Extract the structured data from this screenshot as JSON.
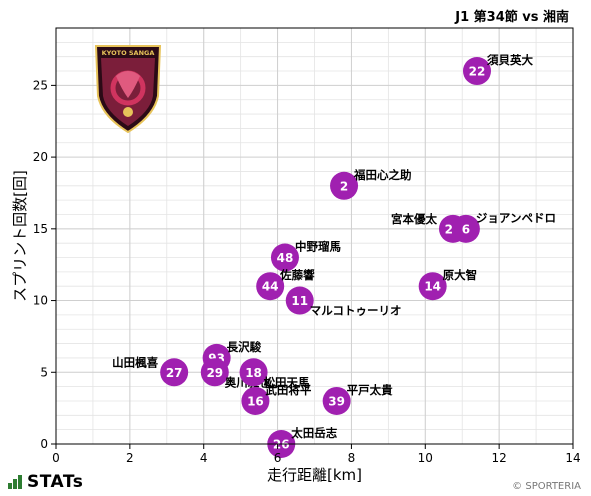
{
  "header": {
    "subtitle": "J1 第34節 vs 湘南"
  },
  "footer": {
    "brand": "STATs",
    "copyright": "© SPORTERIA"
  },
  "logo": {
    "text": "KYOTO SANGA",
    "colors": {
      "shield": "#7b1e3a",
      "accent": "#e7c35a",
      "dark": "#2b0a16"
    }
  },
  "colors": {
    "marker": "#a020b0",
    "marker_text": "#ffffff",
    "grid": "#cfcfcf"
  },
  "chart_data": {
    "type": "scatter",
    "title": "",
    "xlabel": "走行距離[km]",
    "ylabel": "スプリント回数[回]",
    "xlim": [
      0,
      14
    ],
    "ylim": [
      0,
      29
    ],
    "xticks": [
      0,
      2,
      4,
      6,
      8,
      10,
      12,
      14
    ],
    "yticks": [
      0,
      5,
      10,
      15,
      20,
      25
    ],
    "grid": true,
    "points": [
      {
        "number": "22",
        "name": "須貝英大",
        "x": 11.4,
        "y": 26,
        "label_pos": "right"
      },
      {
        "number": "2",
        "name": "福田心之助",
        "x": 7.8,
        "y": 18,
        "label_pos": "right"
      },
      {
        "number": "24",
        "name": "宮本優太",
        "x": 10.75,
        "y": 15,
        "label_pos": "left"
      },
      {
        "number": "6",
        "name": "ジョアンペドロ",
        "x": 11.1,
        "y": 15,
        "label_pos": "right"
      },
      {
        "number": "48",
        "name": "中野瑠馬",
        "x": 6.2,
        "y": 13,
        "label_pos": "right"
      },
      {
        "number": "44",
        "name": "佐藤響",
        "x": 5.8,
        "y": 11,
        "label_pos": "right"
      },
      {
        "number": "14",
        "name": "原大智",
        "x": 10.2,
        "y": 11,
        "label_pos": "right"
      },
      {
        "number": "11",
        "name": "マルコトゥーリオ",
        "x": 6.6,
        "y": 10,
        "label_pos": "below-right"
      },
      {
        "number": "93",
        "name": "長沢駿",
        "x": 4.35,
        "y": 6,
        "label_pos": "right"
      },
      {
        "number": "27",
        "name": "山田楓喜",
        "x": 3.2,
        "y": 5,
        "label_pos": "left"
      },
      {
        "number": "29",
        "name": "奥川雅也",
        "x": 4.3,
        "y": 5,
        "label_pos": "below-right"
      },
      {
        "number": "18",
        "name": "松田天馬",
        "x": 5.35,
        "y": 5,
        "label_pos": "below-right"
      },
      {
        "number": "16",
        "name": "武田将平",
        "x": 5.4,
        "y": 3,
        "label_pos": "right"
      },
      {
        "number": "39",
        "name": "平戸太貴",
        "x": 7.6,
        "y": 3,
        "label_pos": "right"
      },
      {
        "number": "26",
        "name": "太田岳志",
        "x": 6.1,
        "y": 0,
        "label_pos": "right"
      }
    ]
  }
}
